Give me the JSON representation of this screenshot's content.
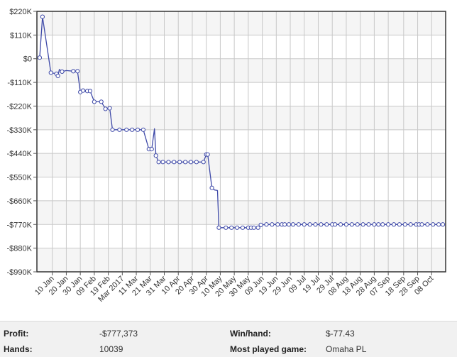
{
  "chart_data": {
    "type": "line",
    "ylim": [
      -990000,
      220000
    ],
    "y_ticks": [
      220000,
      110000,
      0,
      -110000,
      -220000,
      -330000,
      -440000,
      -550000,
      -660000,
      -770000,
      -880000,
      -990000
    ],
    "y_tick_labels": [
      "$220K",
      "$110K",
      "$0",
      "-$110K",
      "-$220K",
      "-$330K",
      "-$440K",
      "-$550K",
      "-$660K",
      "-$770K",
      "-$880K",
      "-$990K"
    ],
    "xlim": [
      "2016-12-30",
      "2017-10-18"
    ],
    "x_ticks": [
      "2017-01-10",
      "2017-01-20",
      "2017-01-30",
      "2017-02-09",
      "2017-02-19",
      "2017-03-01",
      "2017-03-11",
      "2017-03-21",
      "2017-03-31",
      "2017-04-10",
      "2017-04-20",
      "2017-04-30",
      "2017-05-10",
      "2017-05-20",
      "2017-05-30",
      "2017-06-09",
      "2017-06-19",
      "2017-06-29",
      "2017-07-09",
      "2017-07-19",
      "2017-07-29",
      "2017-08-08",
      "2017-08-18",
      "2017-08-28",
      "2017-09-07",
      "2017-09-18",
      "2017-09-28",
      "2017-10-08"
    ],
    "x_tick_labels": [
      "10 Jan",
      "20 Jan",
      "30 Jan",
      "09 Feb",
      "19 Feb",
      "Mar 2017",
      "11 Mar",
      "21 Mar",
      "31 Mar",
      "10 Apr",
      "20 Apr",
      "30 Apr",
      "10 May",
      "20 May",
      "30 May",
      "09 Jun",
      "19 Jun",
      "29 Jun",
      "09 Jul",
      "19 Jul",
      "29 Jul",
      "08 Aug",
      "18 Aug",
      "28 Aug",
      "07 Sep",
      "18 Sep",
      "28 Sep",
      "08 Oct"
    ],
    "grid": true,
    "series": [
      {
        "color": "#3f4aa8",
        "points": [
          {
            "x": "2017-01-01",
            "y": 5000,
            "marker": true
          },
          {
            "x": "2017-01-03",
            "y": 195000,
            "marker": true
          },
          {
            "x": "2017-01-09",
            "y": -65000,
            "marker": true
          },
          {
            "x": "2017-01-13",
            "y": -70000,
            "marker": true
          },
          {
            "x": "2017-01-14",
            "y": -80000,
            "marker": true
          },
          {
            "x": "2017-01-15",
            "y": -50000,
            "marker": false
          },
          {
            "x": "2017-01-17",
            "y": -60000,
            "marker": true
          },
          {
            "x": "2017-01-20",
            "y": -55000,
            "marker": false
          },
          {
            "x": "2017-01-25",
            "y": -58000,
            "marker": true
          },
          {
            "x": "2017-01-28",
            "y": -58000,
            "marker": true
          },
          {
            "x": "2017-01-30",
            "y": -155000,
            "marker": true
          },
          {
            "x": "2017-02-01",
            "y": -148000,
            "marker": true
          },
          {
            "x": "2017-02-04",
            "y": -150000,
            "marker": true
          },
          {
            "x": "2017-02-06",
            "y": -150000,
            "marker": true
          },
          {
            "x": "2017-02-09",
            "y": -200000,
            "marker": true
          },
          {
            "x": "2017-02-14",
            "y": -200000,
            "marker": true
          },
          {
            "x": "2017-02-17",
            "y": -233000,
            "marker": true
          },
          {
            "x": "2017-02-20",
            "y": -230000,
            "marker": true
          },
          {
            "x": "2017-02-22",
            "y": -330000,
            "marker": true
          },
          {
            "x": "2017-02-27",
            "y": -330000,
            "marker": true
          },
          {
            "x": "2017-03-04",
            "y": -330000,
            "marker": true
          },
          {
            "x": "2017-03-08",
            "y": -330000,
            "marker": true
          },
          {
            "x": "2017-03-12",
            "y": -330000,
            "marker": true
          },
          {
            "x": "2017-03-16",
            "y": -330000,
            "marker": true
          },
          {
            "x": "2017-03-20",
            "y": -420000,
            "marker": true
          },
          {
            "x": "2017-03-22",
            "y": -420000,
            "marker": true
          },
          {
            "x": "2017-03-24",
            "y": -325000,
            "marker": false
          },
          {
            "x": "2017-03-25",
            "y": -450000,
            "marker": true
          },
          {
            "x": "2017-03-27",
            "y": -480000,
            "marker": true
          },
          {
            "x": "2017-03-30",
            "y": -480000,
            "marker": true
          },
          {
            "x": "2017-04-03",
            "y": -480000,
            "marker": true
          },
          {
            "x": "2017-04-07",
            "y": -480000,
            "marker": true
          },
          {
            "x": "2017-04-11",
            "y": -480000,
            "marker": true
          },
          {
            "x": "2017-04-15",
            "y": -480000,
            "marker": true
          },
          {
            "x": "2017-04-19",
            "y": -480000,
            "marker": true
          },
          {
            "x": "2017-04-23",
            "y": -480000,
            "marker": true
          },
          {
            "x": "2017-04-28",
            "y": -480000,
            "marker": true
          },
          {
            "x": "2017-04-30",
            "y": -445000,
            "marker": true
          },
          {
            "x": "2017-05-01",
            "y": -445000,
            "marker": true
          },
          {
            "x": "2017-05-04",
            "y": -600000,
            "marker": true
          },
          {
            "x": "2017-05-06",
            "y": -610000,
            "marker": false
          },
          {
            "x": "2017-05-08",
            "y": -612000,
            "marker": false
          },
          {
            "x": "2017-05-09",
            "y": -785000,
            "marker": true
          },
          {
            "x": "2017-05-14",
            "y": -785000,
            "marker": true
          },
          {
            "x": "2017-05-18",
            "y": -785000,
            "marker": true
          },
          {
            "x": "2017-05-22",
            "y": -785000,
            "marker": true
          },
          {
            "x": "2017-05-26",
            "y": -785000,
            "marker": true
          },
          {
            "x": "2017-05-30",
            "y": -785000,
            "marker": true
          },
          {
            "x": "2017-06-01",
            "y": -785000,
            "marker": true
          },
          {
            "x": "2017-06-03",
            "y": -785000,
            "marker": true
          },
          {
            "x": "2017-06-06",
            "y": -785000,
            "marker": true
          },
          {
            "x": "2017-06-08",
            "y": -772000,
            "marker": true
          },
          {
            "x": "2017-06-12",
            "y": -770000,
            "marker": true
          },
          {
            "x": "2017-06-16",
            "y": -770000,
            "marker": true
          },
          {
            "x": "2017-06-20",
            "y": -770000,
            "marker": true
          },
          {
            "x": "2017-06-23",
            "y": -770000,
            "marker": true
          },
          {
            "x": "2017-06-25",
            "y": -770000,
            "marker": true
          },
          {
            "x": "2017-06-28",
            "y": -770000,
            "marker": true
          },
          {
            "x": "2017-07-01",
            "y": -770000,
            "marker": true
          },
          {
            "x": "2017-07-05",
            "y": -770000,
            "marker": true
          },
          {
            "x": "2017-07-09",
            "y": -770000,
            "marker": true
          },
          {
            "x": "2017-07-13",
            "y": -770000,
            "marker": true
          },
          {
            "x": "2017-07-17",
            "y": -770000,
            "marker": true
          },
          {
            "x": "2017-07-21",
            "y": -770000,
            "marker": true
          },
          {
            "x": "2017-07-25",
            "y": -770000,
            "marker": true
          },
          {
            "x": "2017-07-29",
            "y": -770000,
            "marker": true
          },
          {
            "x": "2017-07-31",
            "y": -770000,
            "marker": true
          },
          {
            "x": "2017-08-04",
            "y": -770000,
            "marker": true
          },
          {
            "x": "2017-08-08",
            "y": -770000,
            "marker": true
          },
          {
            "x": "2017-08-12",
            "y": -770000,
            "marker": true
          },
          {
            "x": "2017-08-16",
            "y": -770000,
            "marker": true
          },
          {
            "x": "2017-08-20",
            "y": -770000,
            "marker": true
          },
          {
            "x": "2017-08-24",
            "y": -770000,
            "marker": true
          },
          {
            "x": "2017-08-28",
            "y": -770000,
            "marker": true
          },
          {
            "x": "2017-08-31",
            "y": -770000,
            "marker": true
          },
          {
            "x": "2017-09-03",
            "y": -770000,
            "marker": true
          },
          {
            "x": "2017-09-07",
            "y": -770000,
            "marker": true
          },
          {
            "x": "2017-09-11",
            "y": -770000,
            "marker": true
          },
          {
            "x": "2017-09-15",
            "y": -770000,
            "marker": true
          },
          {
            "x": "2017-09-19",
            "y": -770000,
            "marker": true
          },
          {
            "x": "2017-09-23",
            "y": -770000,
            "marker": true
          },
          {
            "x": "2017-09-27",
            "y": -770000,
            "marker": true
          },
          {
            "x": "2017-09-29",
            "y": -770000,
            "marker": true
          },
          {
            "x": "2017-10-01",
            "y": -770000,
            "marker": true
          },
          {
            "x": "2017-10-05",
            "y": -770000,
            "marker": true
          },
          {
            "x": "2017-10-09",
            "y": -770000,
            "marker": true
          },
          {
            "x": "2017-10-13",
            "y": -770000,
            "marker": true
          },
          {
            "x": "2017-10-16",
            "y": -770000,
            "marker": true
          }
        ]
      }
    ]
  },
  "stats": {
    "profit_label": "Profit:",
    "profit_value": "-$777,373",
    "win_hand_label": "Win/hand:",
    "win_hand_value": "$-77.43",
    "hands_label": "Hands:",
    "hands_value": "10039",
    "most_played_label": "Most played game:",
    "most_played_value": "Omaha PL"
  }
}
